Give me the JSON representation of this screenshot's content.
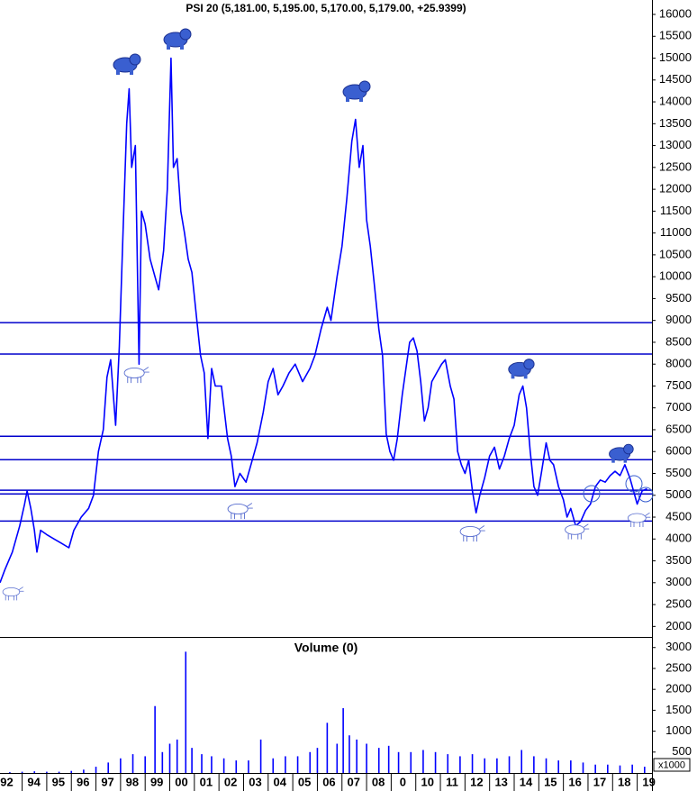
{
  "chart_data": [
    {
      "type": "line",
      "title": "PSI 20 (5,181.00, 5,195.00, 5,170.00, 5,179.00, +25.9399)",
      "color": "#0000ff",
      "xlim": [
        1993.1,
        2019.6
      ],
      "ylim": [
        1780,
        16330
      ],
      "yticks": [
        2000,
        2500,
        3000,
        3500,
        4000,
        4500,
        5000,
        5500,
        6000,
        6500,
        7000,
        7500,
        8000,
        8500,
        9000,
        9500,
        10000,
        10500,
        11000,
        11500,
        12000,
        12500,
        13000,
        13500,
        14000,
        14500,
        15000,
        15500,
        16000
      ],
      "hlines": [
        8950,
        8230,
        6350,
        5815,
        5115,
        5030,
        4410
      ],
      "hline_color": "#0000cc",
      "x": [
        1993.1,
        1993.3,
        1993.6,
        1993.9,
        1994.1,
        1994.2,
        1994.35,
        1994.5,
        1994.6,
        1994.75,
        1995.0,
        1995.3,
        1995.6,
        1995.9,
        1996.1,
        1996.4,
        1996.7,
        1996.9,
        1997.1,
        1997.3,
        1997.45,
        1997.6,
        1997.8,
        1997.95,
        1998.1,
        1998.25,
        1998.35,
        1998.45,
        1998.6,
        1998.75,
        1998.85,
        1999.0,
        1999.2,
        1999.4,
        1999.55,
        1999.75,
        1999.9,
        2000.05,
        2000.15,
        2000.3,
        2000.45,
        2000.6,
        2000.75,
        2000.9,
        2001.1,
        2001.25,
        2001.4,
        2001.55,
        2001.7,
        2001.85,
        2002.1,
        2002.35,
        2002.5,
        2002.65,
        2002.85,
        2003.1,
        2003.3,
        2003.55,
        2003.8,
        2004.0,
        2004.2,
        2004.4,
        2004.6,
        2004.85,
        2005.1,
        2005.4,
        2005.7,
        2005.9,
        2006.15,
        2006.4,
        2006.55,
        2006.8,
        2007.0,
        2007.2,
        2007.4,
        2007.55,
        2007.7,
        2007.85,
        2008.0,
        2008.15,
        2008.3,
        2008.5,
        2008.65,
        2008.8,
        2008.95,
        2009.1,
        2009.25,
        2009.45,
        2009.6,
        2009.75,
        2009.9,
        2010.05,
        2010.2,
        2010.35,
        2010.5,
        2010.65,
        2010.85,
        2011.05,
        2011.2,
        2011.4,
        2011.55,
        2011.7,
        2011.85,
        2012.0,
        2012.15,
        2012.3,
        2012.45,
        2012.6,
        2012.8,
        2013.0,
        2013.2,
        2013.4,
        2013.6,
        2013.8,
        2014.0,
        2014.2,
        2014.35,
        2014.5,
        2014.65,
        2014.8,
        2014.95,
        2015.1,
        2015.3,
        2015.45,
        2015.6,
        2015.8,
        2016.0,
        2016.15,
        2016.3,
        2016.5,
        2016.7,
        2016.9,
        2017.1,
        2017.3,
        2017.5,
        2017.7,
        2017.9,
        2018.1,
        2018.3,
        2018.5,
        2018.7,
        2018.85,
        2019.0,
        2019.2,
        2019.4
      ],
      "values": [
        3000,
        3300,
        3700,
        4300,
        4800,
        5100,
        4700,
        4200,
        3700,
        4200,
        4100,
        4000,
        3900,
        3800,
        4200,
        4500,
        4700,
        5000,
        6000,
        6500,
        7700,
        8100,
        6600,
        8400,
        11000,
        13500,
        14300,
        12500,
        13000,
        8000,
        11500,
        11200,
        10400,
        10000,
        9700,
        10600,
        12000,
        15000,
        12500,
        12700,
        11500,
        11000,
        10400,
        10100,
        9000,
        8200,
        7800,
        6300,
        7900,
        7500,
        7500,
        6300,
        5900,
        5200,
        5500,
        5300,
        5700,
        6200,
        6900,
        7600,
        7900,
        7300,
        7500,
        7800,
        8000,
        7600,
        7900,
        8200,
        8800,
        9300,
        9000,
        10000,
        10700,
        11800,
        13100,
        13600,
        12500,
        13000,
        11300,
        10700,
        9900,
        8800,
        8200,
        6400,
        6000,
        5800,
        6300,
        7300,
        7900,
        8500,
        8600,
        8300,
        7600,
        6700,
        7000,
        7600,
        7800,
        8000,
        8100,
        7500,
        7200,
        6000,
        5700,
        5500,
        5800,
        5100,
        4600,
        5000,
        5400,
        5900,
        6100,
        5600,
        5900,
        6300,
        6600,
        7300,
        7500,
        7000,
        6000,
        5200,
        5000,
        5500,
        6200,
        5800,
        5700,
        5200,
        4900,
        4500,
        4700,
        4300,
        4400,
        4650,
        4800,
        5200,
        5350,
        5300,
        5450,
        5550,
        5450,
        5700,
        5400,
        5100,
        4800,
        5100,
        5150
      ]
    },
    {
      "type": "bar",
      "title": "Volume (0)",
      "unit": "x1000",
      "color": "#0000ff",
      "xlim": [
        1993.1,
        2019.6
      ],
      "ylim": [
        0,
        3210
      ],
      "yticks": [
        500,
        1000,
        1500,
        2000,
        2500,
        3000
      ],
      "xticks": [
        {
          "value": 1992.9,
          "label": "92"
        },
        {
          "value": 1994,
          "label": "94"
        },
        {
          "value": 1995,
          "label": "95"
        },
        {
          "value": 1996,
          "label": "96"
        },
        {
          "value": 1997,
          "label": "97"
        },
        {
          "value": 1998,
          "label": "98"
        },
        {
          "value": 1999,
          "label": "99"
        },
        {
          "value": 2000,
          "label": "00"
        },
        {
          "value": 2001,
          "label": "01"
        },
        {
          "value": 2002,
          "label": "02"
        },
        {
          "value": 2003,
          "label": "03"
        },
        {
          "value": 2004,
          "label": "04"
        },
        {
          "value": 2005,
          "label": "05"
        },
        {
          "value": 2006,
          "label": "06"
        },
        {
          "value": 2007,
          "label": "07"
        },
        {
          "value": 2008,
          "label": "08"
        },
        {
          "value": 2009,
          "label": "0"
        },
        {
          "value": 2010,
          "label": "10"
        },
        {
          "value": 2011,
          "label": "11"
        },
        {
          "value": 2012,
          "label": "12"
        },
        {
          "value": 2013,
          "label": "13"
        },
        {
          "value": 2014,
          "label": "14"
        },
        {
          "value": 2015,
          "label": "15"
        },
        {
          "value": 2016,
          "label": "16"
        },
        {
          "value": 2017,
          "label": "17"
        },
        {
          "value": 2018,
          "label": "18"
        },
        {
          "value": 2019,
          "label": "19"
        }
      ],
      "x": [
        1993.5,
        1994.0,
        1994.5,
        1995.0,
        1995.5,
        1996.0,
        1996.5,
        1997.0,
        1997.5,
        1998.0,
        1998.5,
        1999.0,
        1999.4,
        1999.7,
        2000.0,
        2000.3,
        2000.65,
        2000.9,
        2001.3,
        2001.7,
        2002.2,
        2002.7,
        2003.2,
        2003.7,
        2004.2,
        2004.7,
        2005.2,
        2005.7,
        2006.0,
        2006.4,
        2006.8,
        2007.05,
        2007.3,
        2007.6,
        2008.0,
        2008.5,
        2008.9,
        2009.3,
        2009.8,
        2010.3,
        2010.8,
        2011.3,
        2011.8,
        2012.3,
        2012.8,
        2013.3,
        2013.8,
        2014.3,
        2014.8,
        2015.3,
        2015.8,
        2016.3,
        2016.8,
        2017.3,
        2017.8,
        2018.3,
        2018.8,
        2019.3
      ],
      "values": [
        20,
        30,
        40,
        30,
        30,
        50,
        80,
        150,
        250,
        350,
        450,
        400,
        1600,
        500,
        700,
        800,
        2900,
        600,
        450,
        400,
        350,
        300,
        300,
        800,
        350,
        400,
        400,
        500,
        600,
        1200,
        700,
        1550,
        900,
        800,
        700,
        600,
        650,
        500,
        500,
        550,
        500,
        450,
        400,
        450,
        350,
        350,
        400,
        550,
        400,
        350,
        300,
        300,
        250,
        200,
        200,
        180,
        200,
        150
      ]
    }
  ]
}
